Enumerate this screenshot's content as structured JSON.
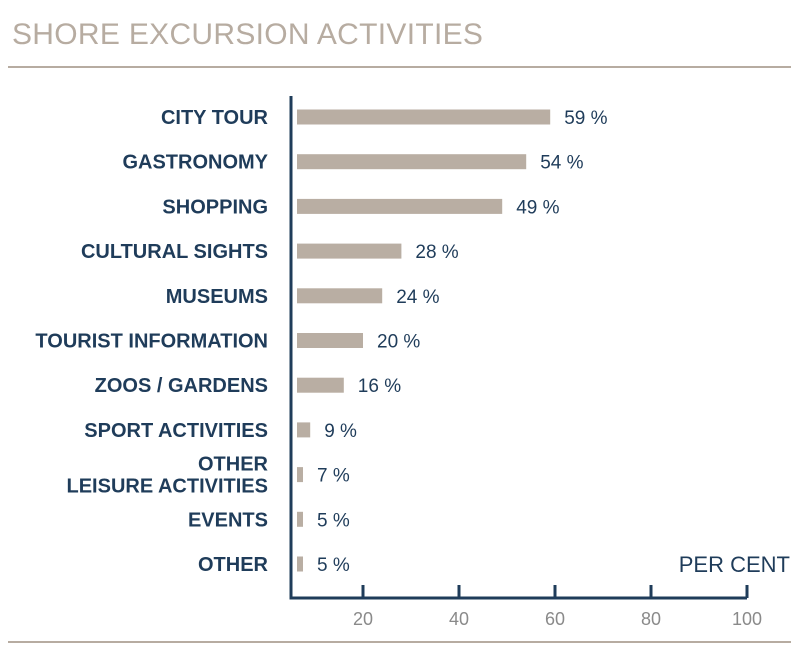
{
  "chart_data": {
    "type": "bar",
    "orientation": "horizontal",
    "title": "SHORE EXCURSION ACTIVITIES",
    "unit_label": "PER CENT",
    "categories": [
      "CITY TOUR",
      "GASTRONOMY",
      "SHOPPING",
      "CULTURAL SIGHTS",
      "MUSEUMS",
      "TOURIST INFORMATION",
      "ZOOS / GARDENS",
      "SPORT ACTIVITIES",
      "OTHER\nLEISURE ACTIVITIES",
      "EVENTS",
      "OTHER"
    ],
    "values": [
      59,
      54,
      49,
      28,
      24,
      20,
      16,
      9,
      7,
      5,
      5
    ],
    "value_labels": [
      "59 %",
      "54 %",
      "49 %",
      "28 %",
      "24 %",
      "20 %",
      "16 %",
      "9 %",
      "7 %",
      "5 %",
      "5 %"
    ],
    "xlim": [
      5,
      100
    ],
    "xticks": [
      20,
      40,
      60,
      80,
      100
    ],
    "xtick_labels": [
      "20",
      "40",
      "60",
      "80",
      "100"
    ],
    "grid": false,
    "colors": {
      "bar": "#b9aea3",
      "axis": "#1f3c5a",
      "label": "#1f3c5a",
      "tick_label": "#8a8a8a",
      "title": "#b7aca1"
    }
  }
}
